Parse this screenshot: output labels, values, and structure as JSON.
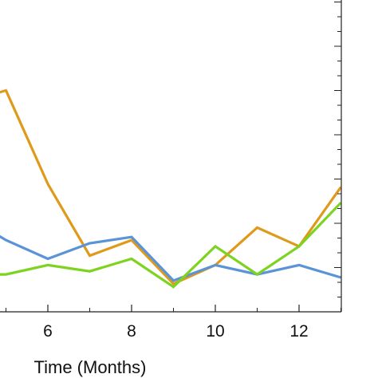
{
  "chart_data": {
    "type": "line",
    "xlabel": "Time (Months)",
    "ylabel": "",
    "xlim": [
      4.5,
      13.0
    ],
    "ylim": [
      0.0,
      1.0
    ],
    "x_ticks": [
      6,
      8,
      10,
      12
    ],
    "grid": false,
    "series": [
      {
        "color": "#df9a1b",
        "x": [
          4.5,
          5,
          6,
          7,
          8,
          9,
          10,
          11,
          12,
          13
        ],
        "values": [
          0.69,
          0.71,
          0.41,
          0.18,
          0.23,
          0.09,
          0.15,
          0.27,
          0.21,
          0.4
        ]
      },
      {
        "color": "#5b93d7",
        "x": [
          4.5,
          5,
          6,
          7,
          8,
          9,
          10,
          11,
          12,
          13
        ],
        "values": [
          0.27,
          0.23,
          0.17,
          0.22,
          0.24,
          0.1,
          0.15,
          0.12,
          0.15,
          0.11
        ]
      },
      {
        "color": "#7ed321",
        "x": [
          4.5,
          5,
          6,
          7,
          8,
          9,
          10,
          11,
          12,
          13
        ],
        "values": [
          0.12,
          0.12,
          0.15,
          0.13,
          0.17,
          0.08,
          0.21,
          0.12,
          0.21,
          0.35
        ]
      }
    ]
  }
}
